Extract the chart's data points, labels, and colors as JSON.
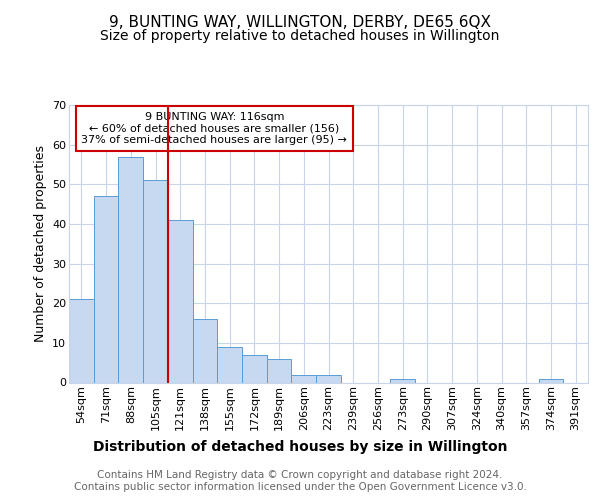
{
  "title": "9, BUNTING WAY, WILLINGTON, DERBY, DE65 6QX",
  "subtitle": "Size of property relative to detached houses in Willington",
  "xlabel": "Distribution of detached houses by size in Willington",
  "ylabel": "Number of detached properties",
  "categories": [
    "54sqm",
    "71sqm",
    "88sqm",
    "105sqm",
    "121sqm",
    "138sqm",
    "155sqm",
    "172sqm",
    "189sqm",
    "206sqm",
    "223sqm",
    "239sqm",
    "256sqm",
    "273sqm",
    "290sqm",
    "307sqm",
    "324sqm",
    "340sqm",
    "357sqm",
    "374sqm",
    "391sqm"
  ],
  "values": [
    21,
    47,
    57,
    51,
    41,
    16,
    9,
    7,
    6,
    2,
    2,
    0,
    0,
    1,
    0,
    0,
    0,
    0,
    0,
    1,
    0
  ],
  "bar_color": "#c6d9f0",
  "bar_edge_color": "#5b9bd5",
  "vline_color": "#cc0000",
  "vline_position": 3.5,
  "annotation_text": "9 BUNTING WAY: 116sqm\n← 60% of detached houses are smaller (156)\n37% of semi-detached houses are larger (95) →",
  "annotation_box_facecolor": "#ffffff",
  "annotation_box_edgecolor": "#cc0000",
  "ylim": [
    0,
    70
  ],
  "yticks": [
    0,
    10,
    20,
    30,
    40,
    50,
    60,
    70
  ],
  "footer_text": "Contains HM Land Registry data © Crown copyright and database right 2024.\nContains public sector information licensed under the Open Government Licence v3.0.",
  "background_color": "#ffffff",
  "grid_color": "#c8d4e8",
  "title_fontsize": 11,
  "subtitle_fontsize": 10,
  "xlabel_fontsize": 10,
  "ylabel_fontsize": 9,
  "tick_fontsize": 8,
  "annotation_fontsize": 8,
  "footer_fontsize": 7.5
}
